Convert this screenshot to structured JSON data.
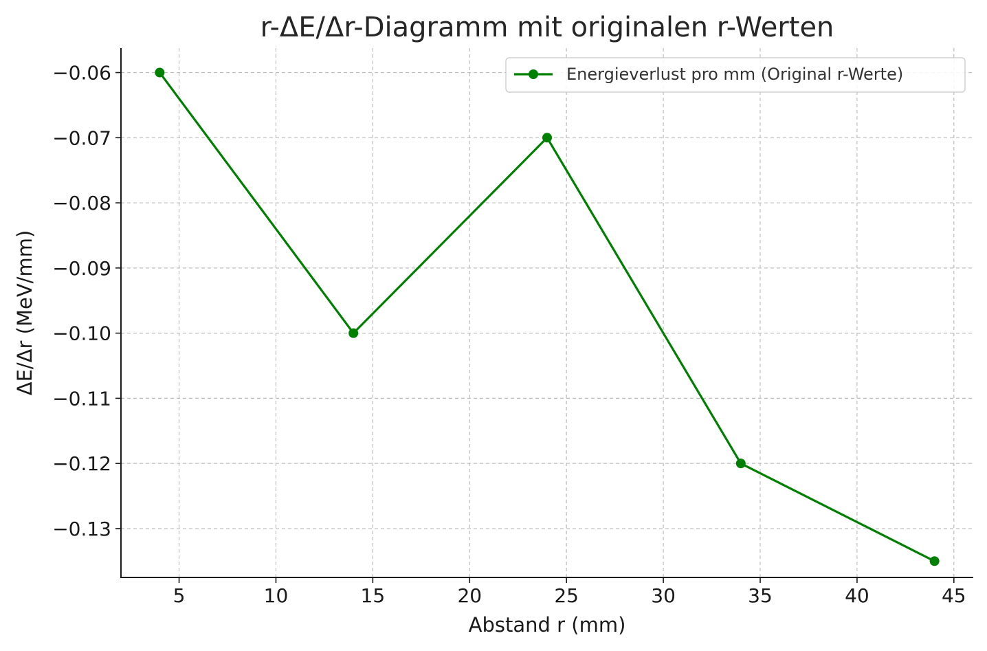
{
  "chart_data": {
    "type": "line",
    "title": "r-ΔE/Δr-Diagramm mit originalen r-Werten",
    "xlabel": "Abstand r (mm)",
    "ylabel": "ΔE/Δr (MeV/mm)",
    "xlim": [
      2,
      46
    ],
    "ylim": [
      -0.1375,
      -0.05625
    ],
    "x_ticks": [
      5,
      10,
      15,
      20,
      25,
      30,
      35,
      40,
      45
    ],
    "x_tick_labels": [
      "5",
      "10",
      "15",
      "20",
      "25",
      "30",
      "35",
      "40",
      "45"
    ],
    "y_ticks": [
      -0.06,
      -0.07,
      -0.08,
      -0.09,
      -0.1,
      -0.11,
      -0.12,
      -0.13
    ],
    "y_tick_labels": [
      "−0.06",
      "−0.07",
      "−0.08",
      "−0.09",
      "−0.10",
      "−0.11",
      "−0.12",
      "−0.13"
    ],
    "grid": true,
    "legend_position": "top-right",
    "series": [
      {
        "name": "Energieverlust pro mm (Original r-Werte)",
        "color": "#008000",
        "marker": "circle",
        "x": [
          4,
          14,
          24,
          34,
          44
        ],
        "y": [
          -0.06,
          -0.1,
          -0.07,
          -0.12,
          -0.135
        ]
      }
    ]
  }
}
